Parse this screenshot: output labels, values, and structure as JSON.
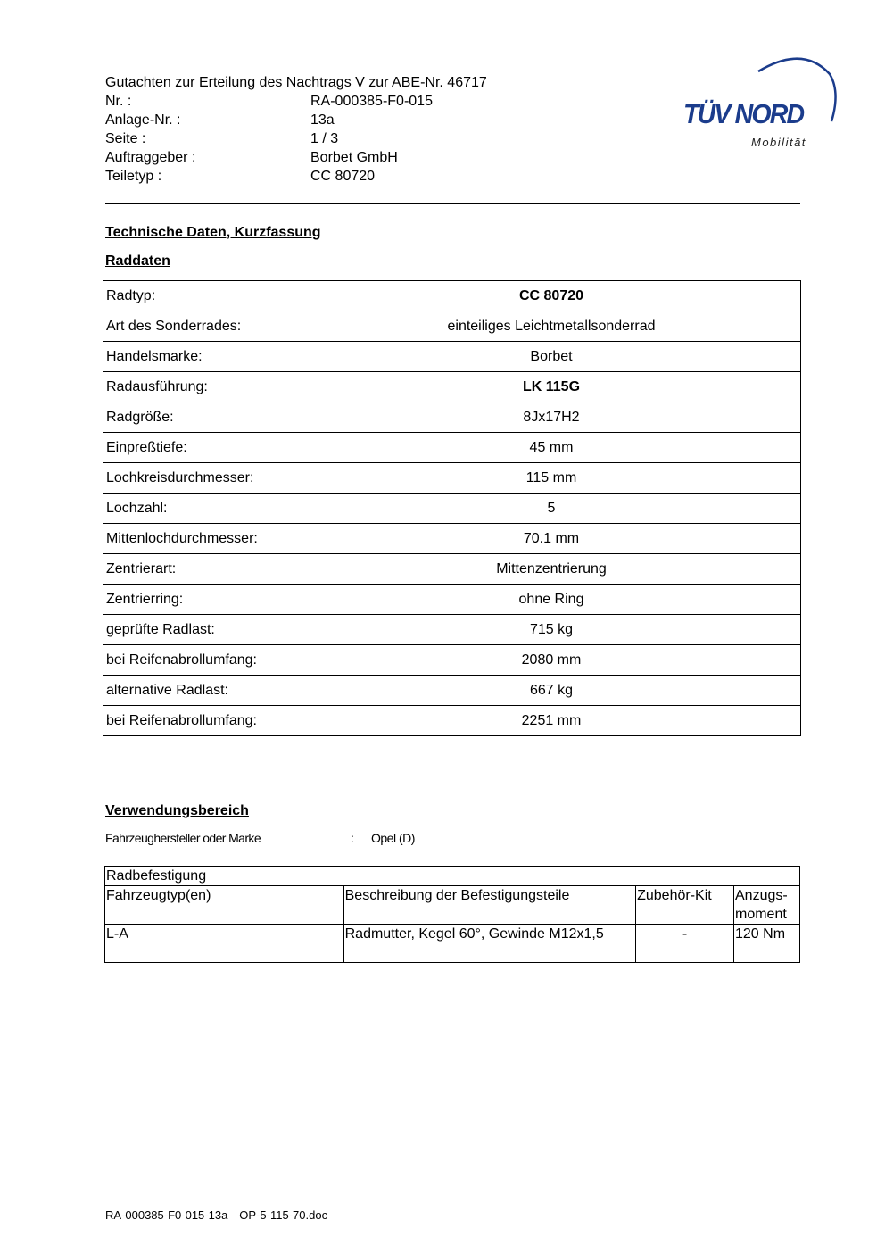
{
  "header": {
    "title": "Gutachten zur Erteilung des Nachtrags V zur ABE-Nr. 46717",
    "fields": [
      {
        "label": "Nr. :",
        "value": "RA-000385-F0-015"
      },
      {
        "label": "Anlage-Nr. :",
        "value": "13a"
      },
      {
        "label": "Seite :",
        "value": "1 / 3"
      },
      {
        "label": "Auftraggeber :",
        "value": "Borbet GmbH"
      },
      {
        "label": "Teiletyp :",
        "value": "CC 80720"
      }
    ]
  },
  "logo": {
    "brand": "TÜV NORD",
    "sub": "Mobilität",
    "color": "#1b3c8c"
  },
  "section1": "Technische Daten,  Kurzfassung",
  "section2": "Raddaten",
  "raddaten": [
    {
      "label": "Radtyp:",
      "value": "CC 80720",
      "bold": true
    },
    {
      "label": "Art des Sonderrades:",
      "value": "einteiliges Leichtmetallsonderrad"
    },
    {
      "label": "Handelsmarke:",
      "value": "Borbet"
    },
    {
      "label": "Radausführung:",
      "value": "LK 115G",
      "bold": true
    },
    {
      "label": "Radgröße:",
      "value": "8Jx17H2"
    },
    {
      "label": "Einpreßtiefe:",
      "value": "45 mm"
    },
    {
      "label": "Lochkreisdurchmesser:",
      "value": "115 mm"
    },
    {
      "label": "Lochzahl:",
      "value": "5"
    },
    {
      "label": "Mittenlochdurchmesser:",
      "value": "70.1 mm"
    },
    {
      "label": "Zentrierart:",
      "value": "Mittenzentrierung"
    },
    {
      "label": "Zentrierring:",
      "value": "ohne Ring"
    },
    {
      "label": "geprüfte Radlast:",
      "value": "715 kg"
    },
    {
      "label": "bei Reifenabrollumfang:",
      "value": "2080 mm"
    },
    {
      "label": "alternative Radlast:",
      "value": "667 kg"
    },
    {
      "label": "bei Reifenabrollumfang:",
      "value": "2251 mm"
    }
  ],
  "section3": "Verwendungsbereich",
  "hersteller": {
    "label": "Fahrzeughersteller oder Marke",
    "sep": ":",
    "value": "Opel (D)"
  },
  "befestigung": {
    "title": "Radbefestigung",
    "headers": [
      "Fahrzeugtyp(en)",
      "Beschreibung der Befestigungsteile",
      "Zubehör-Kit",
      "Anzugs-moment"
    ],
    "rows": [
      [
        "L-A",
        "Radmutter, Kegel 60°, Gewinde M12x1,5",
        "-",
        "120 Nm"
      ]
    ]
  },
  "footer": "RA-000385-F0-015-13a—OP-5-115-70.doc"
}
